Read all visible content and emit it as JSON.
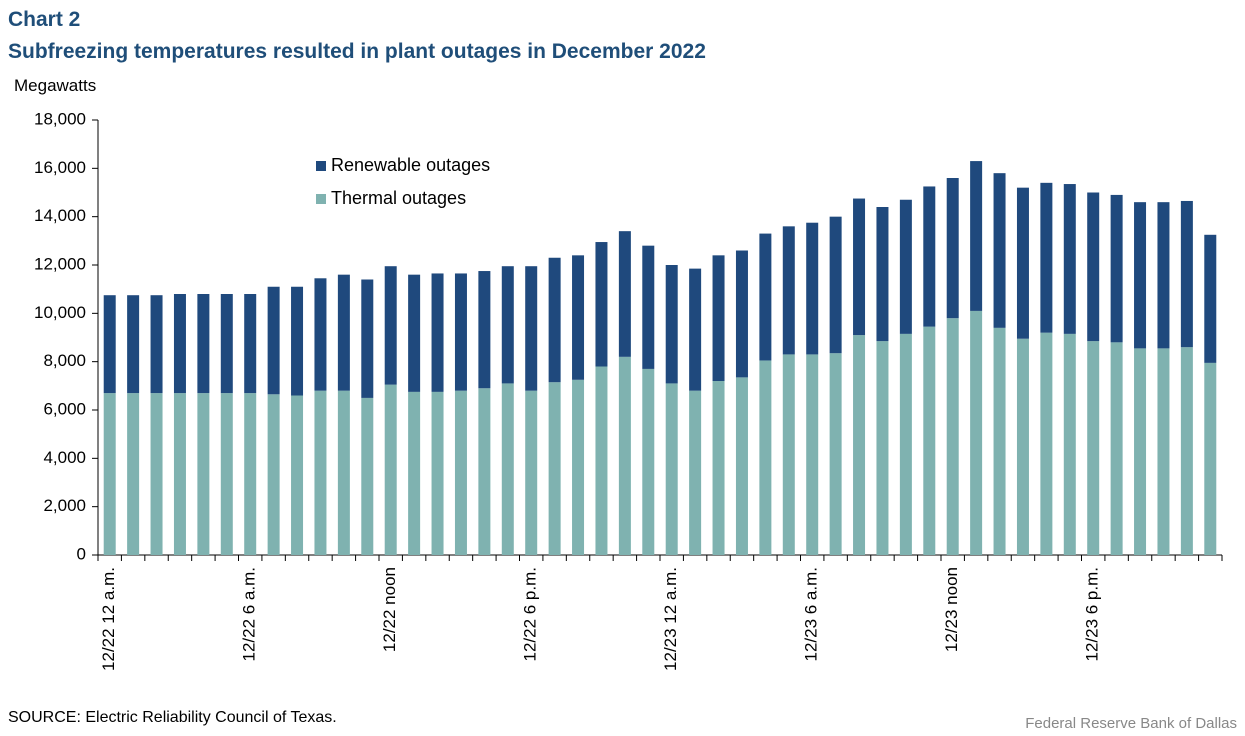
{
  "chart_data": {
    "type": "stacked_bar",
    "title": "Chart 2",
    "subtitle": "Subfreezing temperatures resulted in plant outages in December 2022",
    "y_label": "Megawatts",
    "source": "SOURCE: Electric Reliability Council of Texas.",
    "credit": "Federal Reserve  Bank of Dallas",
    "categories": [
      "12/22 12 a.m.",
      null,
      null,
      null,
      null,
      null,
      "12/22 6 a.m.",
      null,
      null,
      null,
      null,
      null,
      "12/22 noon",
      null,
      null,
      null,
      null,
      null,
      "12/22 6 p.m.",
      null,
      null,
      null,
      null,
      null,
      "12/23 12 a.m.",
      null,
      null,
      null,
      null,
      null,
      "12/23 6 a.m.",
      null,
      null,
      null,
      null,
      null,
      "12/23 noon",
      null,
      null,
      null,
      null,
      null,
      "12/23 6 p.m.",
      null,
      null,
      null,
      null,
      null
    ],
    "series": [
      {
        "name": "Renewable outages",
        "color": "#1f497d",
        "values": [
          4050,
          4050,
          4050,
          4100,
          4100,
          4100,
          4100,
          4450,
          4500,
          4650,
          4800,
          4900,
          4900,
          4850,
          4900,
          4850,
          4850,
          4850,
          5150,
          5150,
          5150,
          5150,
          5200,
          5100,
          4900,
          5050,
          5200,
          5250,
          5250,
          5300,
          5450,
          5650,
          5650,
          5550,
          5550,
          5800,
          5800,
          6200,
          6400,
          6250,
          6200,
          6200,
          6150,
          6100,
          6050,
          6050,
          6050,
          5300
        ]
      },
      {
        "name": "Thermal outages",
        "color": "#7fb2b0",
        "values": [
          6700,
          6700,
          6700,
          6700,
          6700,
          6700,
          6700,
          6650,
          6600,
          6800,
          6800,
          6500,
          7050,
          6750,
          6750,
          6800,
          6900,
          7100,
          6800,
          7150,
          7250,
          7800,
          8200,
          7700,
          7100,
          6800,
          7200,
          7350,
          8050,
          8300,
          8300,
          8350,
          9100,
          8850,
          9150,
          9450,
          9800,
          10100,
          9400,
          8950,
          9200,
          9150,
          8850,
          8800,
          8550,
          8550,
          8600,
          7950
        ]
      }
    ],
    "ylim": [
      0,
      18000
    ],
    "yticks": [
      0,
      {
        "value": 2000,
        "label": "2,000"
      },
      {
        "value": 4000,
        "label": "4,000"
      },
      {
        "value": 6000,
        "label": "6,000"
      },
      {
        "value": 8000,
        "label": "8,000"
      },
      {
        "value": 10000,
        "label": "10,000"
      },
      {
        "value": 12000,
        "label": "12,000"
      },
      {
        "value": 14000,
        "label": "14,000"
      },
      {
        "value": 16000,
        "label": "16,000"
      },
      {
        "value": 18000,
        "label": "18,000"
      }
    ],
    "grid": false,
    "legend": "top-left"
  }
}
